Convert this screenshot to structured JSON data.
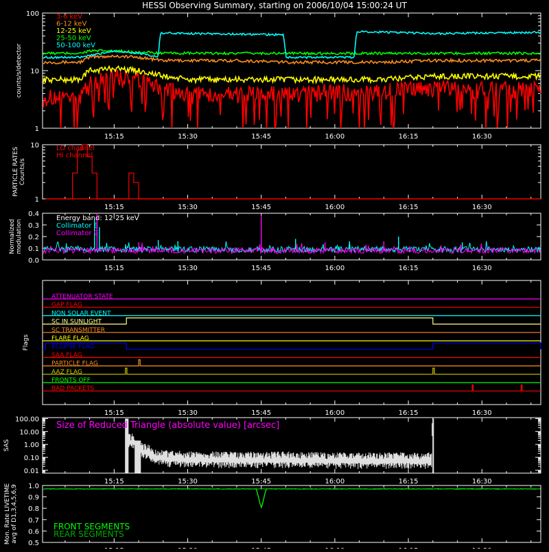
{
  "title": "HESSI Observing Summary, starting on 2006/10/04 15:00:24 UT",
  "time_axis": {
    "ticks": [
      "15:15",
      "15:30",
      "15:45",
      "16:00",
      "16:15",
      "16:30"
    ],
    "tick_minutes": [
      15,
      30,
      45,
      60,
      75,
      90
    ],
    "range_minutes": [
      0.4,
      102
    ]
  },
  "colors": {
    "foreground": "#ffffff",
    "background": "#000000",
    "red": "#ff0000",
    "orange": "#ff8c1a",
    "yellow": "#ffff00",
    "green": "#00ff00",
    "cyan": "#00ffff",
    "magenta": "#ff00ff",
    "blue": "#0000ff"
  },
  "chart_data": [
    {
      "type": "line",
      "ylabel": "counts/s/detector",
      "yscale": "log",
      "ylim": [
        1,
        100
      ],
      "yticks": [
        "1",
        "10",
        "100"
      ],
      "legend_placement": "top-left",
      "series": [
        {
          "name": "3-6 keV",
          "color": "#ff0000",
          "x": [
            1,
            8,
            10,
            15,
            20,
            25,
            30,
            40,
            50,
            60,
            70,
            80,
            90,
            102
          ],
          "y": [
            3.5,
            3.5,
            6,
            8,
            7,
            5,
            4,
            4,
            4,
            4.5,
            4.5,
            5,
            5,
            5
          ]
        },
        {
          "name": "6-12 keV",
          "color": "#ff8c1a",
          "x": [
            1,
            8,
            10,
            15,
            20,
            25,
            30,
            40,
            50,
            60,
            70,
            80,
            90,
            102
          ],
          "y": [
            14,
            14,
            17,
            18,
            17,
            15,
            15,
            15,
            14,
            14,
            14,
            15,
            15,
            15
          ]
        },
        {
          "name": "12-25 keV",
          "color": "#ffff00",
          "x": [
            1,
            8,
            10,
            15,
            20,
            25,
            30,
            40,
            50,
            60,
            70,
            80,
            90,
            102
          ],
          "y": [
            7,
            7,
            10,
            11,
            10,
            8,
            7,
            7,
            7,
            7,
            7,
            8,
            8,
            8
          ]
        },
        {
          "name": "25-50 keV",
          "color": "#00ff00",
          "x": [
            1,
            8,
            10,
            15,
            20,
            25,
            30,
            40,
            50,
            60,
            70,
            80,
            90,
            102
          ],
          "y": [
            20,
            20,
            22,
            22,
            21,
            20,
            20,
            20,
            20,
            20,
            20,
            20,
            20,
            20
          ]
        },
        {
          "name": "50-100 keV",
          "color": "#00ffff",
          "x": [
            1,
            8,
            10,
            15,
            20,
            24,
            24.5,
            40,
            49.5,
            50,
            60,
            64,
            64.5,
            80,
            102
          ],
          "y": [
            17,
            17,
            18,
            22,
            20,
            17,
            45,
            43,
            42,
            17,
            17,
            17,
            48,
            44,
            46
          ]
        }
      ]
    },
    {
      "type": "line",
      "ylabel": "PARTICLE RATES\nCounts/s",
      "yscale": "log",
      "ylim": [
        1,
        10
      ],
      "yticks": [
        "1",
        "10"
      ],
      "legend_placement": "top-left",
      "series": [
        {
          "name": "LO channel",
          "color": "#ff0000",
          "x": [
            1,
            5.5,
            6.5,
            7.5,
            8.5,
            9.5,
            10.5,
            11.5,
            17,
            18,
            19,
            20,
            102
          ],
          "y": [
            1,
            1,
            3,
            8,
            10,
            6,
            3,
            1,
            1,
            3,
            2,
            1,
            1
          ]
        },
        {
          "name": "HI channel",
          "color": "#ff0000",
          "x": [
            1,
            102
          ],
          "y": [
            1,
            1
          ]
        }
      ]
    },
    {
      "type": "line",
      "ylabel": "Normalized\nmodulation",
      "ylim": [
        0,
        0.4
      ],
      "yticks": [
        "0.0",
        "0.1",
        "0.2",
        "0.3",
        "0.4"
      ],
      "annotations": [
        "Energy band: 12-25 keV"
      ],
      "legend_placement": "top-left",
      "series": [
        {
          "name": "Collimator 8",
          "color": "#00ffff",
          "baseline": 0.09,
          "spikes": [
            [
              11,
              0.35
            ],
            [
              12,
              0.28
            ],
            [
              24,
              0.17
            ],
            [
              28,
              0.16
            ],
            [
              52,
              0.18
            ],
            [
              63,
              0.16
            ],
            [
              73,
              0.2
            ],
            [
              86,
              0.15
            ]
          ]
        },
        {
          "name": "Collimator 9",
          "color": "#ff00ff",
          "baseline": 0.08,
          "spikes": [
            [
              11.5,
              0.4
            ],
            [
              20,
              0.15
            ],
            [
              45,
              0.38
            ],
            [
              58,
              0.15
            ],
            [
              70,
              0.16
            ]
          ]
        }
      ]
    },
    {
      "type": "line",
      "ylabel": "Flags",
      "flags": [
        {
          "name": "ATTENUATOR STATE",
          "color": "#ff00ff",
          "pulses": []
        },
        {
          "name": "GAP FLAG",
          "color": "#ff0000",
          "pulses": []
        },
        {
          "name": "NON SOLAR EVENT",
          "color": "#00ffff",
          "pulses": []
        },
        {
          "name": "SC IN SUNLIGHT",
          "color": "#ffff88",
          "pulses": [
            [
              17.5,
              80
            ]
          ]
        },
        {
          "name": "SC TRANSMITTER",
          "color": "#ff8c1a",
          "pulses": []
        },
        {
          "name": "FLARE FLAG",
          "color": "#ffff00",
          "pulses": []
        },
        {
          "name": "ECLIPSE FLAG",
          "color": "#0000ff",
          "pulses": [
            [
              1,
              17.5
            ],
            [
              80,
              102
            ]
          ]
        },
        {
          "name": "SAA FLAG",
          "color": "#ff0000",
          "pulses": []
        },
        {
          "name": "PARTICLE FLAG",
          "color": "#ff8c1a",
          "pulses": [
            [
              20,
              20.3
            ]
          ]
        },
        {
          "name": "AAZ FLAG",
          "color": "#cccc00",
          "pulses": [
            [
              17.3,
              17.6
            ],
            [
              80,
              80.3
            ]
          ]
        },
        {
          "name": "FRONTS OFF",
          "color": "#00ff00",
          "pulses": []
        },
        {
          "name": "BAD PACKETS",
          "color": "#ff0000",
          "pulses": [
            [
              88,
              88.2
            ],
            [
              98,
              98.2
            ]
          ]
        }
      ]
    },
    {
      "type": "line",
      "ylabel": "SAS",
      "yscale": "log",
      "ylim": [
        0.006,
        120
      ],
      "yticks": [
        "0.01",
        "0.10",
        "1.00",
        "10.00",
        "100.00"
      ],
      "annotations": [
        "Size of Reduced Triangle (absolute value) [arcsec]"
      ],
      "series": [
        {
          "name": "",
          "color": "#ffffff",
          "x": [
            17.3,
            17.8,
            19,
            20,
            23,
            26,
            30,
            40,
            50,
            60,
            70,
            79.8,
            80.2
          ],
          "y": [
            100,
            2,
            2,
            0.5,
            0.15,
            0.1,
            0.09,
            0.08,
            0.08,
            0.07,
            0.07,
            0.07,
            100
          ]
        }
      ]
    },
    {
      "type": "line",
      "ylabel": "Mon. Rate LIVETIME\navg of D1,3,4,5,6,9",
      "ylim": [
        0.5,
        1.0
      ],
      "yticks": [
        "0.5",
        "0.6",
        "0.7",
        "0.8",
        "0.9",
        "1.0"
      ],
      "legend_placement": "bottom-left",
      "series": [
        {
          "name": "FRONT SEGMENTS",
          "color": "#00ff00",
          "x": [
            1,
            44,
            45,
            46,
            102
          ],
          "y": [
            0.97,
            0.97,
            0.8,
            0.97,
            0.97
          ]
        },
        {
          "name": "REAR SEGMENTS",
          "color": "#00aa00",
          "x": [
            1,
            102
          ],
          "y": [
            0.97,
            0.97
          ]
        }
      ]
    }
  ]
}
